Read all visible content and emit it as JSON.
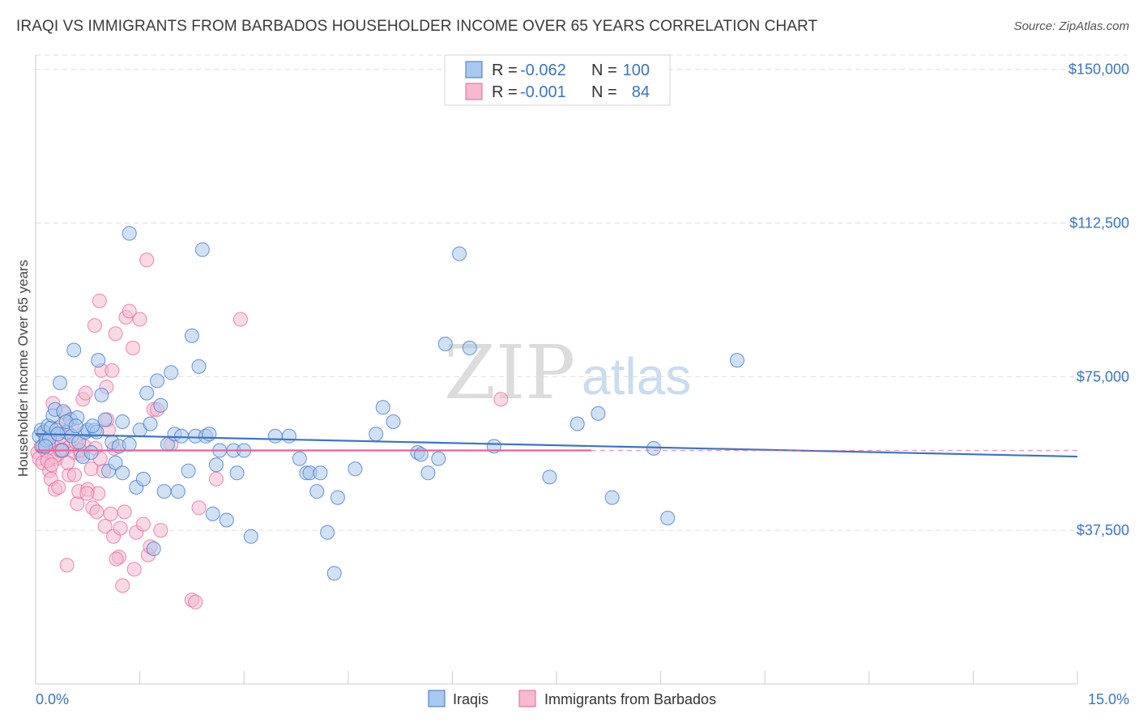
{
  "title": "IRAQI VS IMMIGRANTS FROM BARBADOS HOUSEHOLDER INCOME OVER 65 YEARS CORRELATION CHART",
  "source": "Source: ZipAtlas.com",
  "watermark": {
    "zip": "ZIP",
    "atlas": "atlas"
  },
  "colors": {
    "blue": "#3a74c8",
    "blue_fill": "#a9c8ef",
    "pink": "#e8639a",
    "pink_fill": "#f6b9cf",
    "grid": "#dddddd"
  },
  "legend": {
    "rows": [
      {
        "r_label": "R =",
        "r_value": "-0.062",
        "n_label": "N =",
        "n_value": "100"
      },
      {
        "r_label": "R =",
        "r_value": "-0.001",
        "n_label": "N =",
        "n_value": "84"
      }
    ]
  },
  "bottom_legend": [
    {
      "label": "Iraqis"
    },
    {
      "label": "Immigrants from Barbados"
    }
  ],
  "chart_data": {
    "type": "scatter",
    "title": "IRAQI VS IMMIGRANTS FROM BARBADOS HOUSEHOLDER INCOME OVER 65 YEARS CORRELATION CHART",
    "xlabel": "",
    "ylabel": "Householder Income Over 65 years",
    "xlim": [
      0,
      15
    ],
    "ylim": [
      0,
      153500
    ],
    "x_tick_labels": [
      "0.0%",
      "15.0%"
    ],
    "y_ticks": [
      37500,
      75000,
      112500,
      150000
    ],
    "y_tick_labels": [
      "$37,500",
      "$75,000",
      "$112,500",
      "$150,000"
    ],
    "series": [
      {
        "name": "Iraqis",
        "trend": {
          "x0": 0,
          "y0": 61000,
          "x1": 15,
          "y1": 55500
        },
        "points": [
          [
            0.05,
            60500
          ],
          [
            0.08,
            62000
          ],
          [
            0.1,
            58000
          ],
          [
            0.12,
            61500
          ],
          [
            0.15,
            59500
          ],
          [
            0.18,
            63000
          ],
          [
            0.2,
            60000
          ],
          [
            0.22,
            62500
          ],
          [
            0.25,
            65500
          ],
          [
            0.28,
            67000
          ],
          [
            0.3,
            62000
          ],
          [
            0.35,
            73500
          ],
          [
            0.38,
            57000
          ],
          [
            0.4,
            66500
          ],
          [
            0.45,
            61500
          ],
          [
            0.5,
            64500
          ],
          [
            0.52,
            60500
          ],
          [
            0.55,
            81500
          ],
          [
            0.6,
            65000
          ],
          [
            0.62,
            59000
          ],
          [
            0.68,
            55500
          ],
          [
            0.72,
            61500
          ],
          [
            0.75,
            62000
          ],
          [
            0.8,
            56500
          ],
          [
            0.85,
            62000
          ],
          [
            0.88,
            61500
          ],
          [
            0.9,
            79000
          ],
          [
            0.95,
            70500
          ],
          [
            1.0,
            64500
          ],
          [
            1.05,
            52000
          ],
          [
            1.1,
            59000
          ],
          [
            1.15,
            54000
          ],
          [
            1.2,
            58000
          ],
          [
            1.25,
            51500
          ],
          [
            1.35,
            110000
          ],
          [
            1.45,
            48000
          ],
          [
            1.5,
            62000
          ],
          [
            1.55,
            50000
          ],
          [
            1.6,
            71000
          ],
          [
            1.65,
            63500
          ],
          [
            1.7,
            33000
          ],
          [
            1.75,
            74000
          ],
          [
            1.8,
            68000
          ],
          [
            1.85,
            47000
          ],
          [
            1.9,
            58500
          ],
          [
            1.95,
            76000
          ],
          [
            2.0,
            61000
          ],
          [
            2.05,
            47000
          ],
          [
            2.1,
            60500
          ],
          [
            2.2,
            52000
          ],
          [
            2.25,
            85000
          ],
          [
            2.3,
            60500
          ],
          [
            2.35,
            77500
          ],
          [
            2.4,
            106000
          ],
          [
            2.45,
            60500
          ],
          [
            2.5,
            61000
          ],
          [
            2.55,
            41500
          ],
          [
            2.6,
            53500
          ],
          [
            2.65,
            57000
          ],
          [
            2.75,
            40000
          ],
          [
            2.85,
            57000
          ],
          [
            2.9,
            51500
          ],
          [
            3.0,
            57000
          ],
          [
            3.1,
            36000
          ],
          [
            3.45,
            60500
          ],
          [
            3.65,
            60500
          ],
          [
            3.8,
            55000
          ],
          [
            3.9,
            51500
          ],
          [
            3.95,
            51500
          ],
          [
            4.05,
            47000
          ],
          [
            4.1,
            51500
          ],
          [
            4.2,
            37000
          ],
          [
            4.3,
            27000
          ],
          [
            4.35,
            45500
          ],
          [
            4.6,
            52500
          ],
          [
            4.9,
            61000
          ],
          [
            5.0,
            67500
          ],
          [
            5.15,
            64000
          ],
          [
            5.5,
            56500
          ],
          [
            5.55,
            56000
          ],
          [
            5.65,
            51500
          ],
          [
            5.8,
            55000
          ],
          [
            5.9,
            83000
          ],
          [
            6.1,
            105000
          ],
          [
            6.25,
            82000
          ],
          [
            6.6,
            58000
          ],
          [
            7.4,
            50500
          ],
          [
            7.8,
            63500
          ],
          [
            8.1,
            66000
          ],
          [
            8.3,
            45500
          ],
          [
            8.9,
            57500
          ],
          [
            9.1,
            40500
          ],
          [
            10.1,
            79000
          ],
          [
            0.14,
            58000
          ],
          [
            0.32,
            61000
          ],
          [
            0.44,
            64000
          ],
          [
            0.58,
            63000
          ],
          [
            0.82,
            63000
          ],
          [
            1.25,
            64000
          ],
          [
            1.35,
            58500
          ]
        ]
      },
      {
        "name": "Immigrants from Barbados",
        "trend": {
          "x0": 0,
          "y0": 57000,
          "x1": 8,
          "y1": 57000
        },
        "points": [
          [
            0.03,
            56500
          ],
          [
            0.05,
            55000
          ],
          [
            0.08,
            58000
          ],
          [
            0.1,
            54000
          ],
          [
            0.12,
            61000
          ],
          [
            0.15,
            57000
          ],
          [
            0.18,
            59000
          ],
          [
            0.2,
            52000
          ],
          [
            0.22,
            50000
          ],
          [
            0.25,
            68500
          ],
          [
            0.28,
            47500
          ],
          [
            0.3,
            55000
          ],
          [
            0.32,
            62500
          ],
          [
            0.35,
            57000
          ],
          [
            0.38,
            58500
          ],
          [
            0.4,
            57000
          ],
          [
            0.42,
            66000
          ],
          [
            0.45,
            29000
          ],
          [
            0.48,
            51000
          ],
          [
            0.5,
            58000
          ],
          [
            0.52,
            63000
          ],
          [
            0.55,
            56500
          ],
          [
            0.58,
            59000
          ],
          [
            0.6,
            44000
          ],
          [
            0.62,
            47000
          ],
          [
            0.65,
            56000
          ],
          [
            0.68,
            69500
          ],
          [
            0.7,
            58000
          ],
          [
            0.72,
            71000
          ],
          [
            0.75,
            47500
          ],
          [
            0.8,
            52500
          ],
          [
            0.82,
            43000
          ],
          [
            0.85,
            87500
          ],
          [
            0.88,
            42000
          ],
          [
            0.9,
            46500
          ],
          [
            0.92,
            93500
          ],
          [
            0.95,
            76500
          ],
          [
            0.98,
            52000
          ],
          [
            1.0,
            38500
          ],
          [
            1.02,
            72500
          ],
          [
            1.05,
            62000
          ],
          [
            1.08,
            41500
          ],
          [
            1.1,
            76500
          ],
          [
            1.12,
            36000
          ],
          [
            1.15,
            85500
          ],
          [
            1.2,
            31000
          ],
          [
            1.22,
            38000
          ],
          [
            1.25,
            24000
          ],
          [
            1.28,
            42000
          ],
          [
            1.3,
            89500
          ],
          [
            1.35,
            91000
          ],
          [
            1.4,
            82000
          ],
          [
            1.45,
            37000
          ],
          [
            1.5,
            89000
          ],
          [
            1.55,
            39000
          ],
          [
            1.6,
            103500
          ],
          [
            1.62,
            31500
          ],
          [
            1.65,
            33500
          ],
          [
            1.7,
            67000
          ],
          [
            1.75,
            67000
          ],
          [
            1.8,
            37500
          ],
          [
            1.95,
            58500
          ],
          [
            2.25,
            20500
          ],
          [
            2.3,
            20000
          ],
          [
            2.35,
            43000
          ],
          [
            2.6,
            50000
          ],
          [
            2.95,
            89000
          ],
          [
            0.27,
            55500
          ],
          [
            0.33,
            48000
          ],
          [
            0.36,
            57000
          ],
          [
            0.46,
            54000
          ],
          [
            0.56,
            51000
          ],
          [
            0.64,
            57000
          ],
          [
            0.74,
            46500
          ],
          [
            0.86,
            57500
          ],
          [
            0.93,
            55000
          ],
          [
            1.03,
            64500
          ],
          [
            1.13,
            57500
          ],
          [
            1.16,
            30500
          ],
          [
            1.42,
            28000
          ],
          [
            6.7,
            69500
          ],
          [
            0.17,
            54500
          ],
          [
            0.23,
            53500
          ],
          [
            0.37,
            60500
          ]
        ]
      }
    ]
  }
}
